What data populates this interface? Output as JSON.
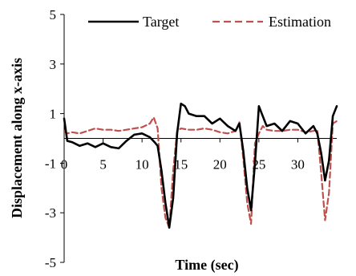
{
  "chart_data": {
    "type": "line",
    "title": "",
    "xlabel": "Time (sec)",
    "ylabel": "Displacement along x-axis",
    "xlim": [
      0,
      35
    ],
    "ylim": [
      -5,
      5
    ],
    "x_ticks": [
      0,
      5,
      10,
      15,
      20,
      25,
      30
    ],
    "y_ticks": [
      5,
      3,
      1,
      -1,
      -3,
      -5
    ],
    "grid": false,
    "legend_position": "top",
    "series": [
      {
        "name": "Target",
        "color": "#000000",
        "style": "solid",
        "x": [
          0,
          0.4,
          1,
          2,
          3,
          4,
          5,
          6,
          7,
          8,
          9,
          10,
          11,
          11.6,
          12,
          12.5,
          13,
          13.5,
          14,
          14.5,
          15,
          15.5,
          16,
          17,
          18,
          19,
          20,
          21,
          22,
          22.5,
          23,
          23.5,
          24,
          24.5,
          25,
          25.5,
          26,
          27,
          28,
          29,
          30,
          31,
          32,
          32.5,
          33,
          33.5,
          34,
          34.5,
          35
        ],
        "y": [
          0.8,
          -0.1,
          -0.15,
          -0.3,
          -0.2,
          -0.35,
          -0.2,
          -0.35,
          -0.4,
          -0.1,
          0.15,
          0.2,
          0.05,
          -0.15,
          -0.3,
          -1.3,
          -2.6,
          -3.6,
          -2.4,
          0.2,
          1.4,
          1.3,
          1.0,
          0.9,
          0.9,
          0.6,
          0.8,
          0.5,
          0.3,
          0.6,
          -0.5,
          -2.0,
          -2.9,
          -1.0,
          1.3,
          0.9,
          0.5,
          0.6,
          0.3,
          0.7,
          0.6,
          0.2,
          0.5,
          0.2,
          -0.6,
          -1.7,
          -0.9,
          0.9,
          1.3
        ]
      },
      {
        "name": "Estimation",
        "color": "#c0504d",
        "style": "dashed",
        "x": [
          0,
          0.4,
          1,
          2,
          3,
          4,
          5,
          6,
          7,
          8,
          9,
          10,
          11,
          11.5,
          12,
          12.5,
          13,
          13.5,
          14,
          14.5,
          15,
          16,
          17,
          18,
          19,
          20,
          21,
          22,
          22.5,
          23,
          23.5,
          24,
          24.5,
          25,
          25.5,
          26,
          27,
          28,
          29,
          30,
          31,
          32,
          32.5,
          33,
          33.5,
          34,
          34.5,
          35
        ],
        "y": [
          0.3,
          0.2,
          0.25,
          0.2,
          0.3,
          0.4,
          0.35,
          0.35,
          0.3,
          0.35,
          0.4,
          0.45,
          0.6,
          0.85,
          0.4,
          -2.0,
          -3.2,
          -3.6,
          -1.3,
          0.3,
          0.4,
          0.35,
          0.35,
          0.4,
          0.35,
          0.25,
          0.2,
          0.3,
          0.65,
          -0.8,
          -2.6,
          -3.45,
          -0.2,
          0.2,
          0.5,
          0.35,
          0.3,
          0.3,
          0.35,
          0.35,
          0.25,
          0.3,
          0.35,
          -1.4,
          -3.3,
          -2.2,
          0.6,
          0.7
        ]
      }
    ]
  }
}
